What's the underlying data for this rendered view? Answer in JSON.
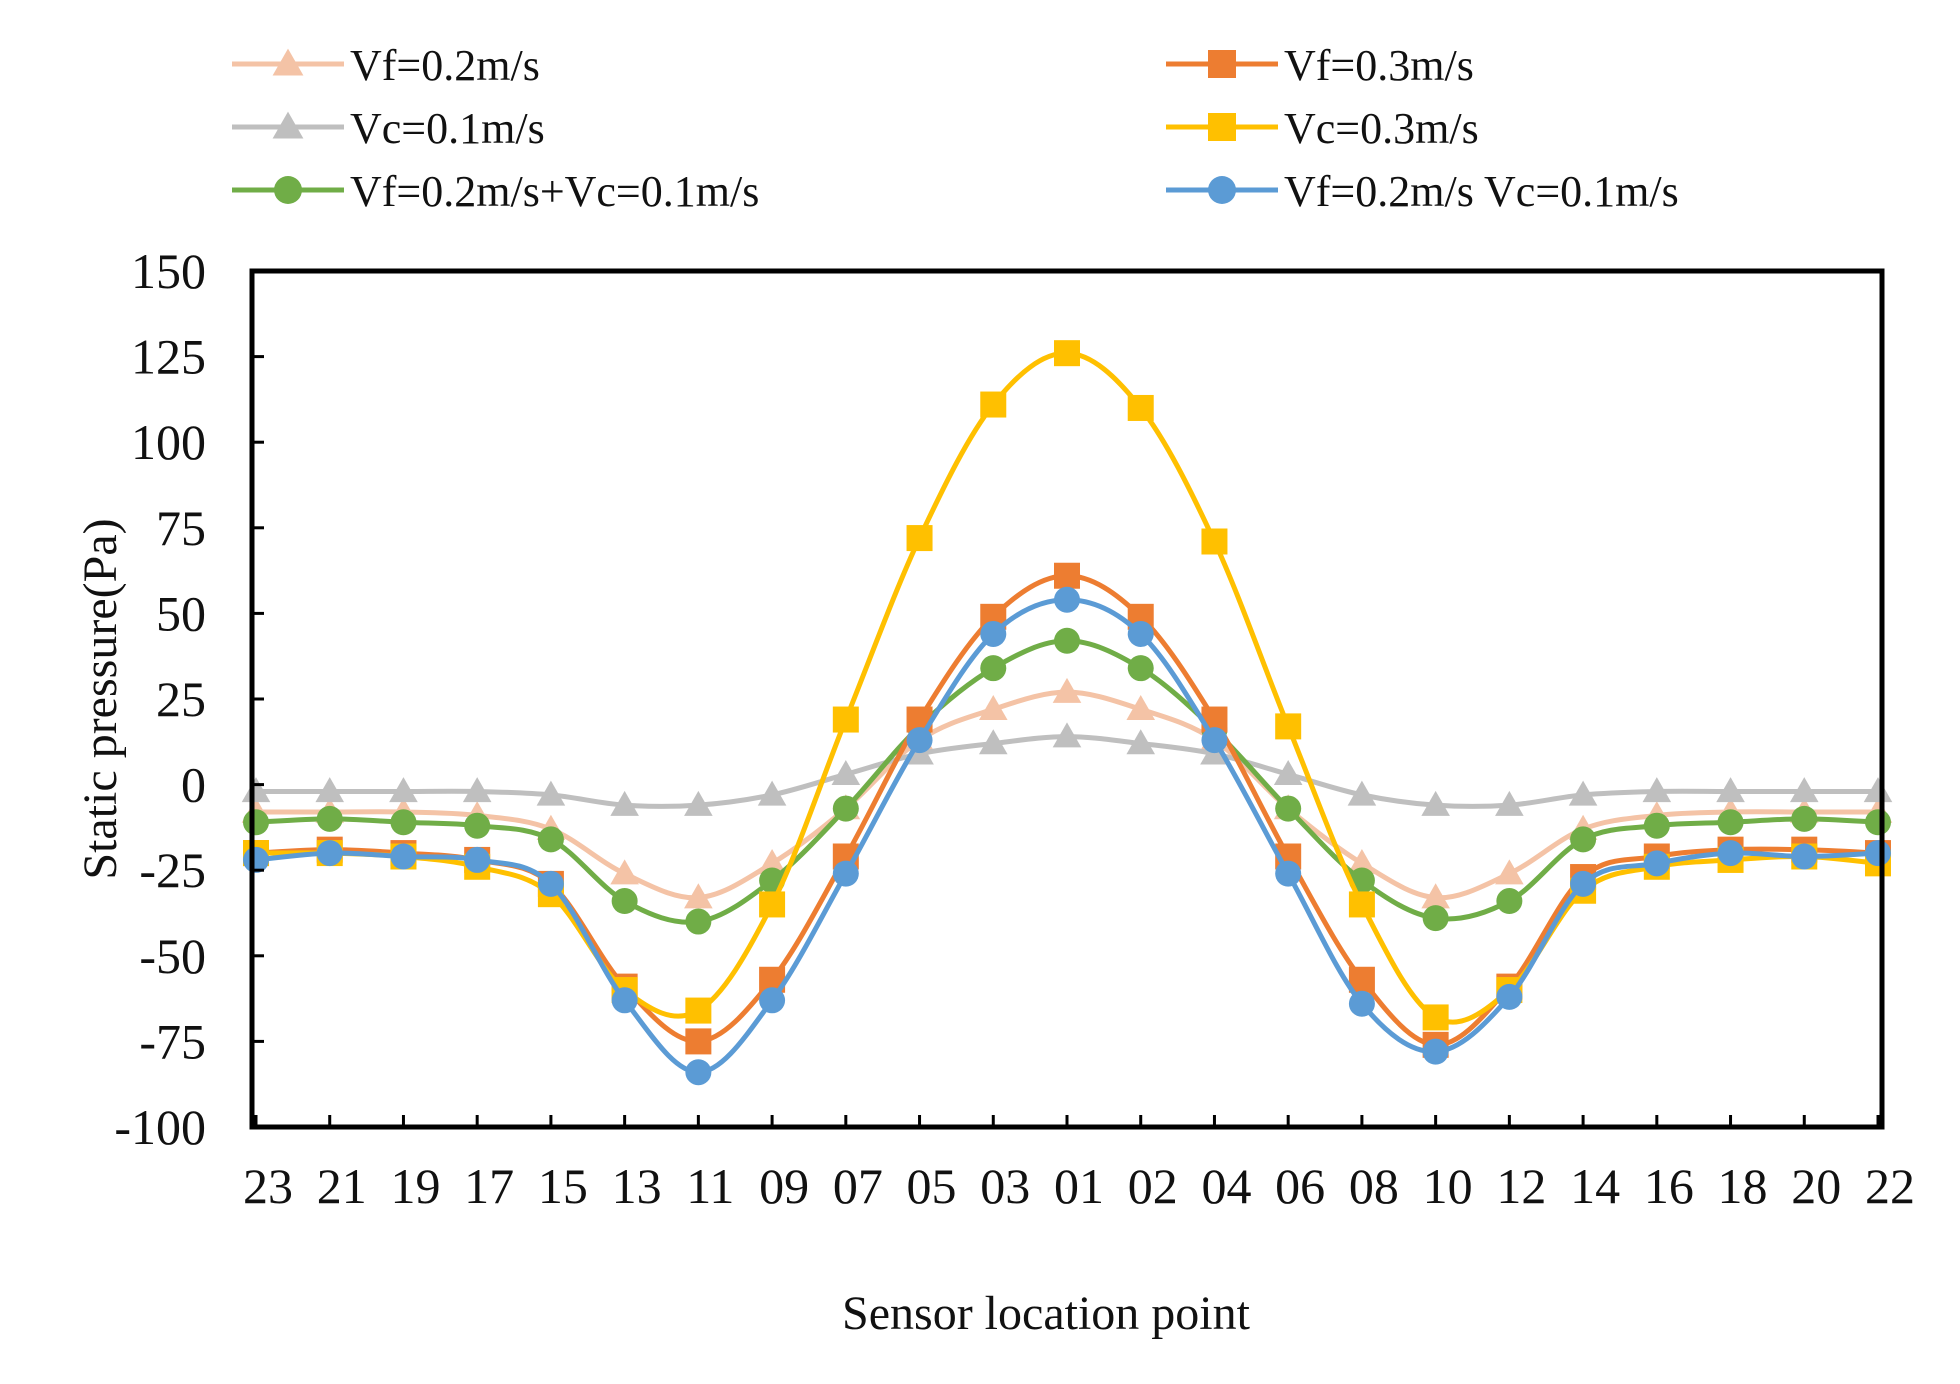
{
  "chart_data": {
    "type": "line",
    "title": "",
    "xlabel": "Sensor location point",
    "ylabel": "Static pressure(Pa)",
    "ylim": [
      -100,
      150
    ],
    "yticks": [
      150,
      125,
      100,
      75,
      50,
      25,
      0,
      -25,
      -50,
      -75,
      -100
    ],
    "grid": false,
    "legend_position": "top",
    "categories": [
      "23",
      "21",
      "19",
      "17",
      "15",
      "13",
      "11",
      "09",
      "07",
      "05",
      "03",
      "01",
      "02",
      "04",
      "06",
      "08",
      "10",
      "12",
      "14",
      "16",
      "18",
      "20",
      "22"
    ],
    "series": [
      {
        "name": "Vf=0.2m/s",
        "color": "#f4c3a6",
        "marker": "triangle",
        "values": [
          -8,
          -8,
          -8,
          -9,
          -13,
          -26,
          -33,
          -23,
          -7,
          13,
          22,
          27,
          22,
          13,
          -7,
          -23,
          -33,
          -26,
          -13,
          -9,
          -8,
          -8,
          -8
        ]
      },
      {
        "name": "Vc=0.1m/s",
        "color": "#bfbfbf",
        "marker": "triangle",
        "values": [
          -2,
          -2,
          -2,
          -2,
          -3,
          -6,
          -6,
          -3,
          3,
          9,
          12,
          14,
          12,
          9,
          3,
          -3,
          -6,
          -6,
          -3,
          -2,
          -2,
          -2,
          -2
        ]
      },
      {
        "name": "Vf=0.2m/s+Vc=0.1m/s",
        "color": "#70ad47",
        "marker": "circle",
        "values": [
          -11,
          -10,
          -11,
          -12,
          -16,
          -34,
          -40,
          -28,
          -7,
          17,
          34,
          42,
          34,
          16,
          -7,
          -28,
          -39,
          -34,
          -16,
          -12,
          -11,
          -10,
          -11
        ]
      },
      {
        "name": "Vf=0.3m/s",
        "color": "#ed7d31",
        "marker": "square",
        "values": [
          -20,
          -19,
          -20,
          -22,
          -29,
          -59,
          -75,
          -57,
          -21,
          19,
          49,
          61,
          49,
          19,
          -21,
          -57,
          -76,
          -59,
          -27,
          -21,
          -19,
          -19,
          -20
        ]
      },
      {
        "name": "Vc=0.3m/s",
        "color": "#ffc000",
        "marker": "square",
        "values": [
          -20,
          -20,
          -21,
          -24,
          -32,
          -60,
          -66,
          -35,
          19,
          72,
          111,
          126,
          110,
          71,
          17,
          -35,
          -68,
          -60,
          -31,
          -24,
          -22,
          -21,
          -23
        ]
      },
      {
        "name": "Vf=0.2m/s Vc=0.1m/s",
        "color": "#5b9bd5",
        "marker": "circle",
        "values": [
          -22,
          -20,
          -21,
          -22,
          -29,
          -63,
          -84,
          -63,
          -26,
          13,
          44,
          54,
          44,
          13,
          -26,
          -64,
          -78,
          -62,
          -29,
          -23,
          -20,
          -21,
          -20
        ]
      }
    ]
  }
}
